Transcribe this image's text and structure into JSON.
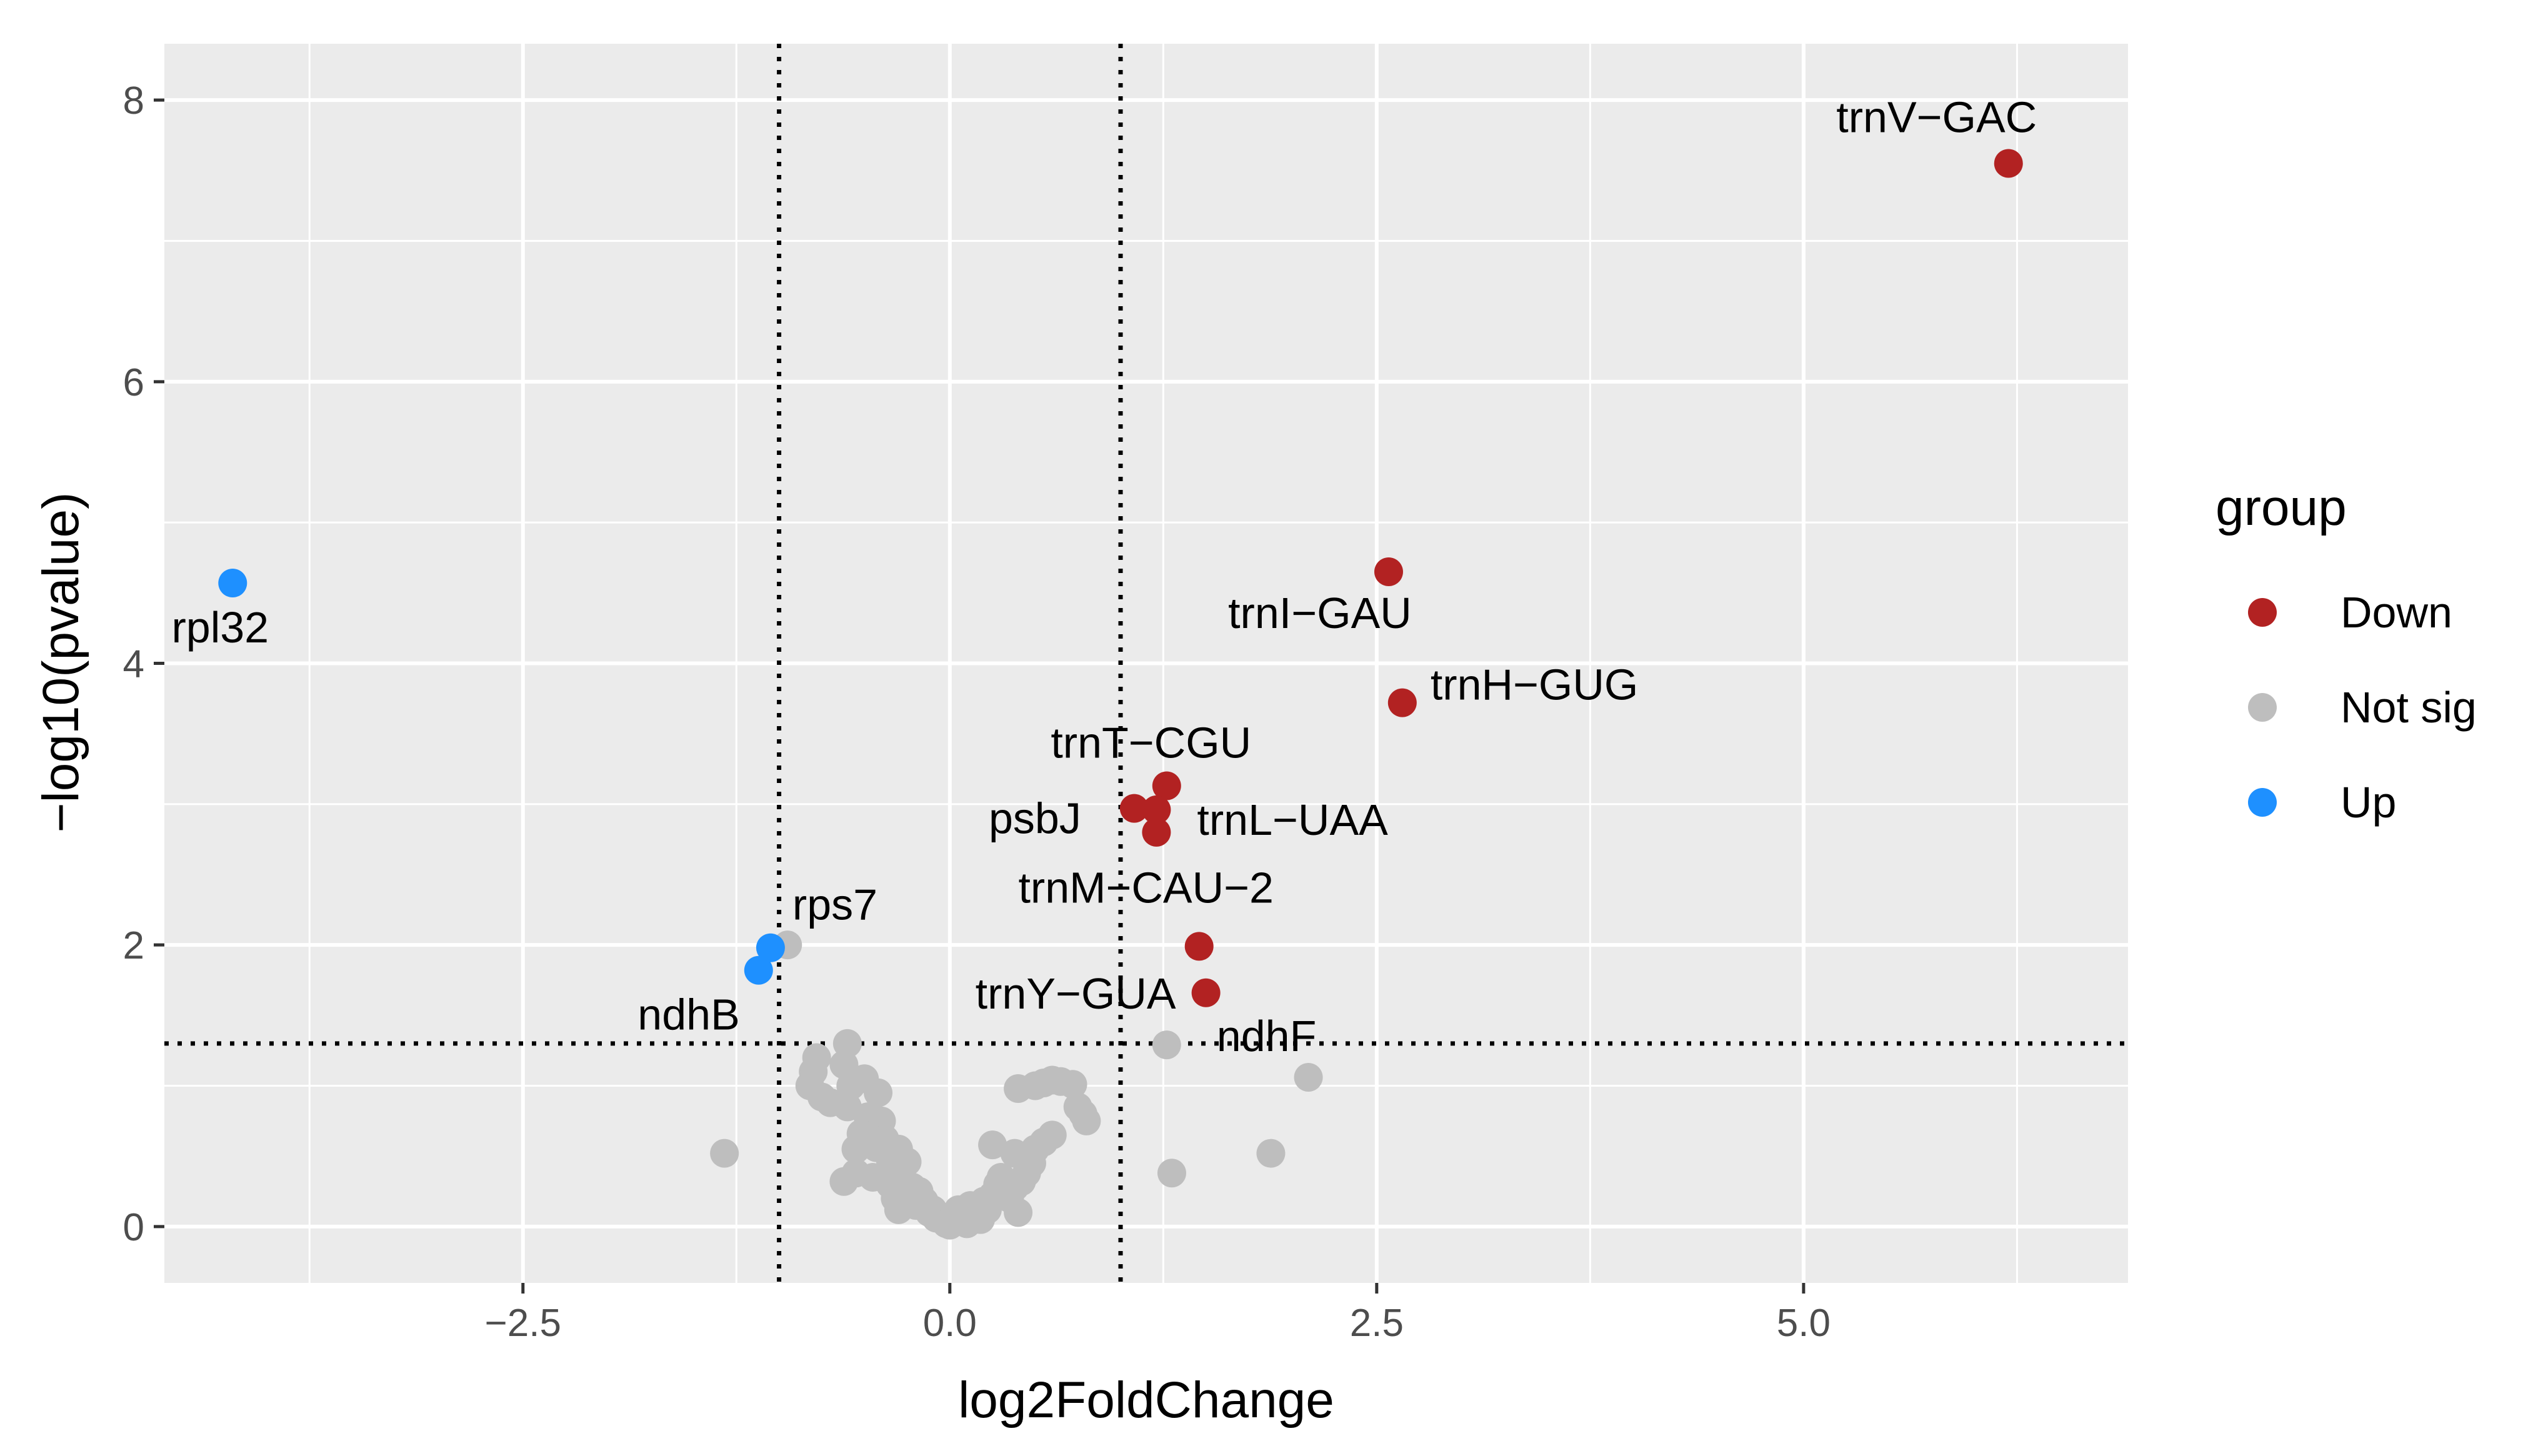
{
  "chart_data": {
    "type": "scatter",
    "title": "",
    "xlabel": "log2FoldChange",
    "ylabel": "−log10(pvalue)",
    "xlim": [
      -4.6,
      6.9
    ],
    "ylim": [
      -0.4,
      8.4
    ],
    "x_ticks": [
      -2.5,
      0.0,
      2.5,
      5.0
    ],
    "x_tick_labels": [
      "−2.5",
      "0.0",
      "2.5",
      "5.0"
    ],
    "x_minor_ticks": [
      -3.75,
      -1.25,
      1.25,
      3.75,
      6.25
    ],
    "y_ticks": [
      0,
      2,
      4,
      6,
      8
    ],
    "y_tick_labels": [
      "0",
      "2",
      "4",
      "6",
      "8"
    ],
    "y_minor_ticks": [
      1,
      3,
      5,
      7
    ],
    "grid": true,
    "reference_lines": {
      "vertical": [
        -1,
        1
      ],
      "horizontal": [
        1.3
      ],
      "style": "dotted"
    },
    "legend": {
      "title": "group",
      "position": "right",
      "entries": [
        {
          "name": "Down",
          "color": "#b22222"
        },
        {
          "name": "Not sig",
          "color": "#bebebe"
        },
        {
          "name": "Up",
          "color": "#1e90ff"
        }
      ]
    },
    "series": [
      {
        "name": "Down",
        "color": "#b22222",
        "points": [
          {
            "x": 6.2,
            "y": 7.55,
            "label": "trnV−GAC"
          },
          {
            "x": 2.57,
            "y": 4.65,
            "label": "trnI−GAU"
          },
          {
            "x": 2.65,
            "y": 3.72,
            "label": "trnH−GUG"
          },
          {
            "x": 1.27,
            "y": 3.13,
            "label": "trnT−CGU"
          },
          {
            "x": 1.08,
            "y": 2.97,
            "label": "psbJ"
          },
          {
            "x": 1.21,
            "y": 2.96,
            "label": "trnL−UAA"
          },
          {
            "x": 1.21,
            "y": 2.8,
            "label": ""
          },
          {
            "x": 1.46,
            "y": 1.99,
            "label": "trnM−CAU−2"
          },
          {
            "x": 1.5,
            "y": 1.66,
            "label": "trnY−GUA"
          }
        ]
      },
      {
        "name": "Up",
        "color": "#1e90ff",
        "points": [
          {
            "x": -4.2,
            "y": 4.57,
            "label": "rpl32"
          },
          {
            "x": -1.05,
            "y": 1.98,
            "label": "rps7"
          },
          {
            "x": -1.12,
            "y": 1.82,
            "label": "ndhB"
          }
        ]
      },
      {
        "name": "Not sig",
        "color": "#bebebe",
        "points": [
          {
            "x": 1.27,
            "y": 1.29,
            "label": "ndhF"
          },
          {
            "x": -0.95,
            "y": 2.0,
            "label": ""
          },
          {
            "x": -1.32,
            "y": 0.52,
            "label": ""
          },
          {
            "x": -0.6,
            "y": 1.3,
            "label": ""
          },
          {
            "x": -0.78,
            "y": 1.2,
            "label": ""
          },
          {
            "x": -0.8,
            "y": 1.1,
            "label": ""
          },
          {
            "x": -0.62,
            "y": 1.15,
            "label": ""
          },
          {
            "x": -0.82,
            "y": 1.0,
            "label": ""
          },
          {
            "x": -0.75,
            "y": 0.92,
            "label": ""
          },
          {
            "x": -0.7,
            "y": 0.88,
            "label": ""
          },
          {
            "x": -0.6,
            "y": 0.85,
            "label": ""
          },
          {
            "x": -0.58,
            "y": 1.0,
            "label": ""
          },
          {
            "x": -0.5,
            "y": 1.05,
            "label": ""
          },
          {
            "x": -0.42,
            "y": 0.95,
            "label": ""
          },
          {
            "x": -0.48,
            "y": 0.78,
            "label": ""
          },
          {
            "x": -0.4,
            "y": 0.75,
            "label": ""
          },
          {
            "x": -0.45,
            "y": 0.7,
            "label": ""
          },
          {
            "x": -0.52,
            "y": 0.66,
            "label": ""
          },
          {
            "x": -0.38,
            "y": 0.62,
            "label": ""
          },
          {
            "x": -0.55,
            "y": 0.55,
            "label": ""
          },
          {
            "x": -0.43,
            "y": 0.56,
            "label": ""
          },
          {
            "x": -0.3,
            "y": 0.55,
            "label": ""
          },
          {
            "x": -0.35,
            "y": 0.48,
            "label": ""
          },
          {
            "x": -0.25,
            "y": 0.46,
            "label": ""
          },
          {
            "x": -0.55,
            "y": 0.38,
            "label": ""
          },
          {
            "x": -0.62,
            "y": 0.32,
            "label": ""
          },
          {
            "x": -0.45,
            "y": 0.35,
            "label": ""
          },
          {
            "x": -0.35,
            "y": 0.3,
            "label": ""
          },
          {
            "x": -0.28,
            "y": 0.35,
            "label": ""
          },
          {
            "x": -0.22,
            "y": 0.28,
            "label": ""
          },
          {
            "x": -0.18,
            "y": 0.25,
            "label": ""
          },
          {
            "x": -0.32,
            "y": 0.2,
            "label": ""
          },
          {
            "x": -0.25,
            "y": 0.18,
            "label": ""
          },
          {
            "x": -0.2,
            "y": 0.15,
            "label": ""
          },
          {
            "x": -0.15,
            "y": 0.18,
            "label": ""
          },
          {
            "x": -0.1,
            "y": 0.12,
            "label": ""
          },
          {
            "x": -0.12,
            "y": 0.1,
            "label": ""
          },
          {
            "x": -0.08,
            "y": 0.06,
            "label": ""
          },
          {
            "x": -0.05,
            "y": 0.05,
            "label": ""
          },
          {
            "x": -0.02,
            "y": 0.02,
            "label": ""
          },
          {
            "x": 0.0,
            "y": 0.01,
            "label": ""
          },
          {
            "x": 0.05,
            "y": 0.04,
            "label": ""
          },
          {
            "x": 0.08,
            "y": 0.1,
            "label": ""
          },
          {
            "x": 0.12,
            "y": 0.15,
            "label": ""
          },
          {
            "x": 0.15,
            "y": 0.08,
            "label": ""
          },
          {
            "x": 0.18,
            "y": 0.05,
            "label": ""
          },
          {
            "x": 0.2,
            "y": 0.18,
            "label": ""
          },
          {
            "x": 0.22,
            "y": 0.12,
            "label": ""
          },
          {
            "x": 0.25,
            "y": 0.22,
            "label": ""
          },
          {
            "x": 0.28,
            "y": 0.3,
            "label": ""
          },
          {
            "x": 0.3,
            "y": 0.35,
            "label": ""
          },
          {
            "x": 0.35,
            "y": 0.2,
            "label": ""
          },
          {
            "x": 0.38,
            "y": 0.28,
            "label": ""
          },
          {
            "x": 0.4,
            "y": 0.1,
            "label": ""
          },
          {
            "x": 0.42,
            "y": 0.32,
            "label": ""
          },
          {
            "x": 0.45,
            "y": 0.38,
            "label": ""
          },
          {
            "x": 0.48,
            "y": 0.45,
            "label": ""
          },
          {
            "x": 0.25,
            "y": 0.58,
            "label": ""
          },
          {
            "x": 0.38,
            "y": 0.52,
            "label": ""
          },
          {
            "x": 0.45,
            "y": 0.5,
            "label": ""
          },
          {
            "x": 0.5,
            "y": 0.55,
            "label": ""
          },
          {
            "x": 0.55,
            "y": 0.6,
            "label": ""
          },
          {
            "x": 0.6,
            "y": 0.65,
            "label": ""
          },
          {
            "x": 0.4,
            "y": 0.98,
            "label": ""
          },
          {
            "x": 0.5,
            "y": 1.0,
            "label": ""
          },
          {
            "x": 0.55,
            "y": 1.02,
            "label": ""
          },
          {
            "x": 0.6,
            "y": 1.04,
            "label": ""
          },
          {
            "x": 0.65,
            "y": 1.03,
            "label": ""
          },
          {
            "x": 0.72,
            "y": 1.01,
            "label": ""
          },
          {
            "x": 0.75,
            "y": 0.85,
            "label": ""
          },
          {
            "x": 0.8,
            "y": 0.75,
            "label": ""
          },
          {
            "x": 0.78,
            "y": 0.8,
            "label": ""
          },
          {
            "x": 1.3,
            "y": 0.38,
            "label": ""
          },
          {
            "x": 1.88,
            "y": 0.52,
            "label": ""
          },
          {
            "x": 2.1,
            "y": 1.06,
            "label": ""
          },
          {
            "x": 0.05,
            "y": 0.12,
            "label": ""
          },
          {
            "x": 0.1,
            "y": 0.02,
            "label": ""
          },
          {
            "x": -0.3,
            "y": 0.12,
            "label": ""
          }
        ]
      }
    ]
  }
}
